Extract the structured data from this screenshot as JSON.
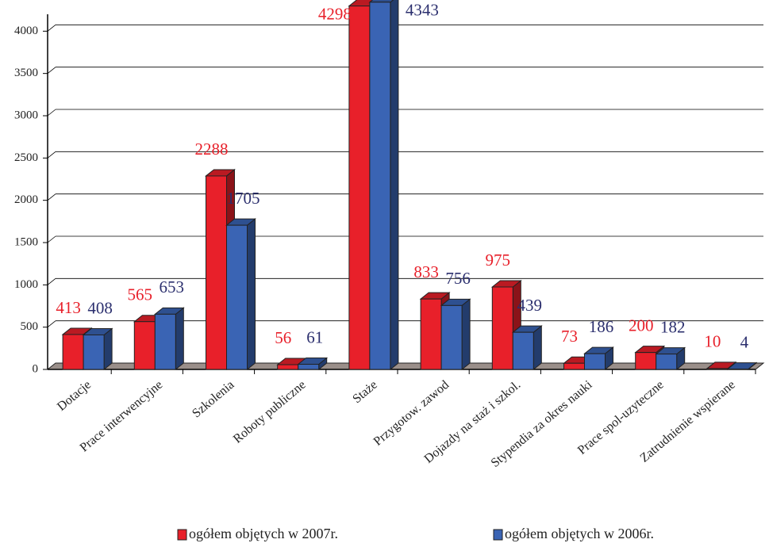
{
  "chart_data": {
    "type": "bar3d",
    "categories": [
      "Dotacje",
      "Prace interwencyjne",
      "Szkolenia",
      "Roboty publiczne",
      "Staże",
      "Przygotow. zawod",
      "Dojazdy na staż i szkol.",
      "Stypendia za okres nauki",
      "Prace spol-uzyteczne",
      "Zatrudnienie wspierane"
    ],
    "series": [
      {
        "name": "ogółem objętych w 2007r.",
        "color": "#e8202a",
        "label_color": "#e8202a",
        "values": [
          413,
          565,
          2288,
          56,
          4298,
          833,
          975,
          73,
          200,
          10
        ]
      },
      {
        "name": "ogółem objętych w 2006r.",
        "color": "#3a64b4",
        "label_color": "#2b2f6e",
        "values": [
          408,
          653,
          1705,
          61,
          4343,
          756,
          439,
          186,
          182,
          4
        ]
      }
    ],
    "ylim": [
      0,
      4200
    ],
    "yticks": [
      0,
      500,
      1000,
      1500,
      2000,
      2500,
      3000,
      3500,
      4000
    ],
    "grid": true,
    "legend": "bottom"
  }
}
